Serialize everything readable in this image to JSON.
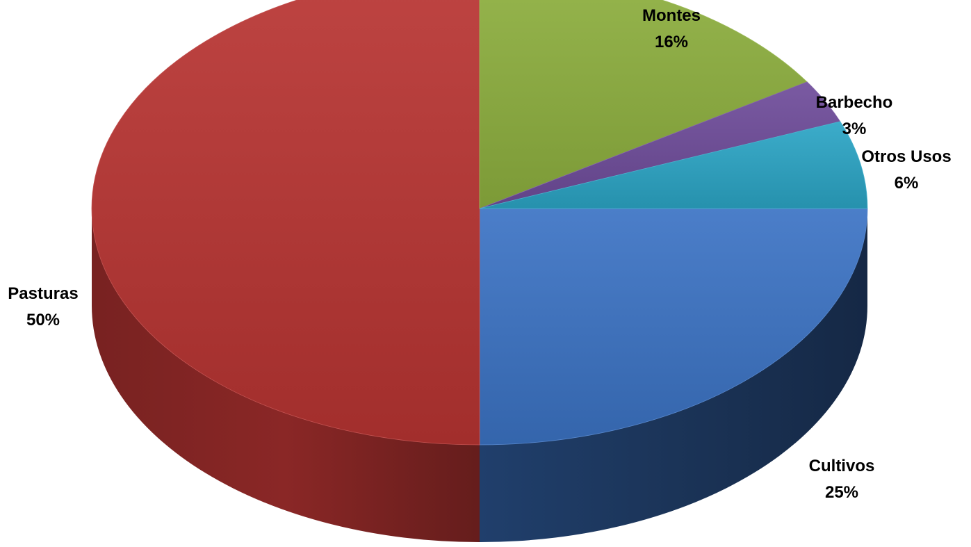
{
  "chart_data": {
    "type": "pie",
    "style": "3d",
    "title": "",
    "slices": [
      {
        "name": "Cultivos",
        "value": 25,
        "label": "25%",
        "color": "#3B73C4"
      },
      {
        "name": "Pasturas",
        "value": 50,
        "label": "50%",
        "color": "#B83432"
      },
      {
        "name": "Montes",
        "value": 16,
        "label": "16%",
        "color": "#8DAF3E"
      },
      {
        "name": "Barbecho",
        "value": 3,
        "label": "3%",
        "color": "#6E4C9A"
      },
      {
        "name": "Otros Usos",
        "value": 6,
        "label": "6%",
        "color": "#2BA5C5"
      }
    ],
    "legend": "none",
    "data_labels": "outside"
  }
}
